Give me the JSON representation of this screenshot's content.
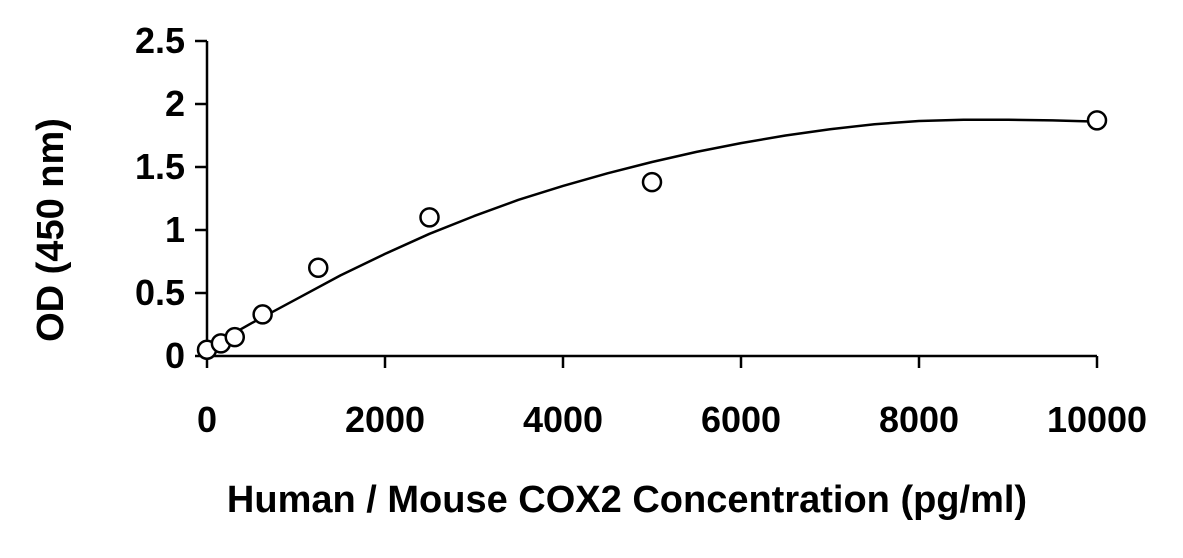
{
  "chart_data": {
    "type": "scatter",
    "title": "",
    "xlabel": "Human / Mouse COX2 Concentration (pg/ml)",
    "ylabel": "OD (450 nm)",
    "xlim": [
      0,
      10000
    ],
    "ylim": [
      0,
      2.5
    ],
    "x_ticks": [
      0,
      2000,
      4000,
      6000,
      8000,
      10000
    ],
    "y_ticks": [
      0,
      0.5,
      1,
      1.5,
      2,
      2.5
    ],
    "x_tick_labels": [
      "0",
      "2000",
      "4000",
      "6000",
      "8000",
      "10000"
    ],
    "y_tick_labels": [
      "0",
      "0.5",
      "1",
      "1.5",
      "2",
      "2.5"
    ],
    "grid": false,
    "legend": "none",
    "series": [
      {
        "x": [
          0,
          156,
          312,
          625,
          1250,
          2500,
          5000,
          10000
        ],
        "y": [
          0.05,
          0.1,
          0.15,
          0.33,
          0.7,
          1.1,
          1.38,
          1.87
        ]
      }
    ],
    "trendline": {
      "type": "polynomial",
      "x": [
        0,
        500,
        1000,
        1500,
        2000,
        2500,
        3000,
        3500,
        4000,
        4500,
        5000,
        5500,
        6000,
        6500,
        7000,
        7500,
        8000,
        8500,
        9000,
        9500,
        10000
      ],
      "y": [
        0.06,
        0.26,
        0.45,
        0.64,
        0.81,
        0.97,
        1.11,
        1.24,
        1.35,
        1.45,
        1.54,
        1.62,
        1.69,
        1.75,
        1.8,
        1.84,
        1.865,
        1.875,
        1.875,
        1.87,
        1.86
      ]
    },
    "colors": {
      "axis": "#000000",
      "marker": "#000000",
      "line": "#000000"
    }
  }
}
